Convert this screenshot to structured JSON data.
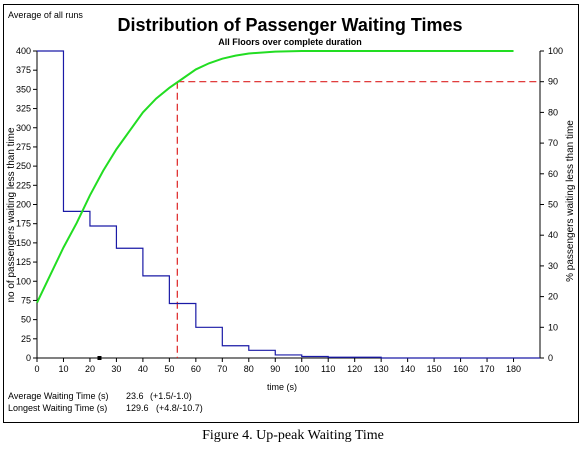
{
  "figure": {
    "caption": "Figure 4.  Up-peak Waiting Time"
  },
  "chart_data": {
    "type": "line",
    "corner_label": "Average of all runs",
    "title": "Distribution of Passenger Waiting Times",
    "subtitle": "All Floors over complete duration",
    "xlabel": "time (s)",
    "ylabel_left": "no of passengers waiting less than time",
    "ylabel_right": "% passengers waiting less than time",
    "xlim": [
      0,
      190
    ],
    "ylim_left": [
      0,
      400
    ],
    "ylim_right": [
      0,
      100
    ],
    "x_ticks": [
      0,
      10,
      20,
      30,
      40,
      50,
      60,
      70,
      80,
      90,
      100,
      110,
      120,
      130,
      140,
      150,
      160,
      170,
      180
    ],
    "y_left_ticks": [
      0,
      25,
      50,
      75,
      100,
      125,
      150,
      175,
      200,
      225,
      250,
      275,
      300,
      325,
      350,
      375,
      400
    ],
    "y_right_ticks": [
      0,
      10,
      20,
      30,
      40,
      50,
      60,
      70,
      80,
      90,
      100
    ],
    "grid": false,
    "series": [
      {
        "axis": "left",
        "style": "step",
        "color": "#1a1aa6",
        "x": [
          0,
          10,
          20,
          30,
          40,
          50,
          60,
          70,
          80,
          90,
          100,
          110,
          120,
          130,
          140,
          150,
          160,
          170,
          180
        ],
        "values": [
          400,
          191,
          172,
          143,
          107,
          71,
          40,
          16,
          10,
          4,
          2,
          1,
          1,
          0,
          0,
          0,
          0,
          0,
          0
        ]
      },
      {
        "axis": "right",
        "style": "line",
        "color": "#22dd22",
        "x": [
          0,
          5,
          10,
          15,
          20,
          25,
          30,
          35,
          40,
          45,
          50,
          55,
          60,
          65,
          70,
          75,
          80,
          90,
          100,
          110,
          120,
          150,
          180
        ],
        "values": [
          18,
          27,
          36,
          44,
          53,
          61,
          68,
          74,
          80,
          84.5,
          88,
          91,
          94,
          96,
          97.5,
          98.5,
          99.2,
          99.8,
          100,
          100,
          100,
          100,
          100
        ]
      }
    ],
    "reference_lines": {
      "color": "#dd2222",
      "vertical_x": 53,
      "horizontal_right_y": 90
    },
    "marker_x": 23.6,
    "stats": [
      {
        "label": "Average Waiting Time (s)",
        "value": "23.6",
        "range": "(+1.5/-1.0)"
      },
      {
        "label": "Longest Waiting Time (s)",
        "value": "129.6",
        "range": "(+4.8/-10.7)"
      }
    ]
  }
}
